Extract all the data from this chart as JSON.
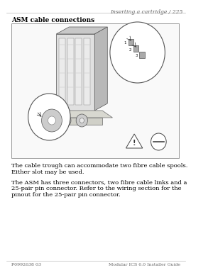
{
  "page_header_right": "Inserting a cartridge / 225",
  "section_heading": "ASM cable connections",
  "body_text_1_line1": "The cable trough can accommodate two fibre cable spools.",
  "body_text_1_line2": "Either slot may be used.",
  "body_text_2_line1": "The ASM has three connectors, two fibre cable links and a",
  "body_text_2_line2": "25-pair pin connector. Refer to the wiring section for the",
  "body_text_2_line3": "pinout for the 25-pair pin connector.",
  "footer_left": "P0992638 03",
  "footer_right": "Modular ICS 6.0 Installer Guide",
  "bg_color": "#ffffff",
  "text_color": "#000000",
  "header_color": "#666666",
  "box_border": "#999999"
}
